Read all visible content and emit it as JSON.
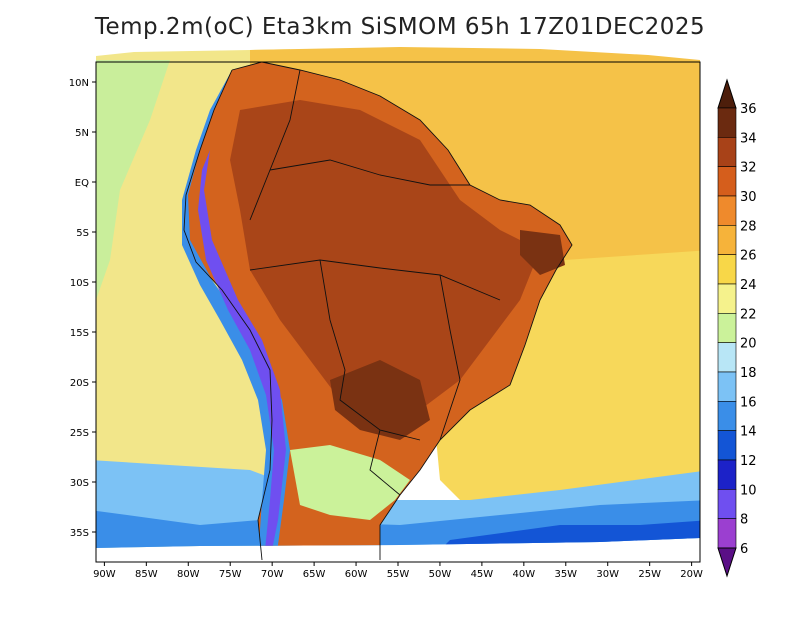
{
  "title": "Temp.2m(oC) Eta3km SiSMOM 65h 17Z01DEC2025",
  "map": {
    "lon_range": [
      -91,
      -19
    ],
    "lat_range": [
      -38,
      12
    ],
    "lon_ticks": [
      {
        "value": -90,
        "label": "90W"
      },
      {
        "value": -85,
        "label": "85W"
      },
      {
        "value": -80,
        "label": "80W"
      },
      {
        "value": -75,
        "label": "75W"
      },
      {
        "value": -70,
        "label": "70W"
      },
      {
        "value": -65,
        "label": "65W"
      },
      {
        "value": -60,
        "label": "60W"
      },
      {
        "value": -55,
        "label": "55W"
      },
      {
        "value": -50,
        "label": "50W"
      },
      {
        "value": -45,
        "label": "45W"
      },
      {
        "value": -40,
        "label": "40W"
      },
      {
        "value": -35,
        "label": "35W"
      },
      {
        "value": -30,
        "label": "30W"
      },
      {
        "value": -25,
        "label": "25W"
      },
      {
        "value": -20,
        "label": "20W"
      }
    ],
    "lat_ticks": [
      {
        "value": 10,
        "label": "10N"
      },
      {
        "value": 5,
        "label": "5N"
      },
      {
        "value": 0,
        "label": "EQ"
      },
      {
        "value": -5,
        "label": "5S"
      },
      {
        "value": -10,
        "label": "10S"
      },
      {
        "value": -15,
        "label": "15S"
      },
      {
        "value": -20,
        "label": "20S"
      },
      {
        "value": -25,
        "label": "25S"
      },
      {
        "value": -30,
        "label": "30S"
      },
      {
        "value": -35,
        "label": "35S"
      }
    ]
  },
  "colorbar": {
    "labels": [
      "6",
      "8",
      "10",
      "12",
      "14",
      "16",
      "18",
      "20",
      "22",
      "24",
      "26",
      "28",
      "30",
      "32",
      "34",
      "36"
    ],
    "colors": [
      "#7a1aa8",
      "#9b3fd0",
      "#6f4ff0",
      "#1c22c8",
      "#1355d6",
      "#3a8ee8",
      "#7cc2f5",
      "#b8e6f6",
      "#cbf29a",
      "#f5f28c",
      "#f8d748",
      "#f6b33a",
      "#ef8a2c",
      "#d55e1c",
      "#a84218",
      "#6b2a10"
    ],
    "low_color": "#5a0f86",
    "high_color": "#4d1e0b"
  },
  "temperature_fields": {
    "pacific_warm": "#f2e68a",
    "pacific_cool": "#c9ee9b",
    "atlantic_n": "#f5c248",
    "atlantic_s": "#f7d85a",
    "south_cold": "#7cc2f5",
    "south_colder": "#3a8ee8",
    "south_coldest": "#1355d6",
    "land_hot": "#d3631e",
    "land_hotter": "#a94518",
    "land_hottest": "#7a3212",
    "andes_cold": "#3a8ee8",
    "andes_colder": "#6f4ff0",
    "patagonia": "#cbf29a"
  }
}
